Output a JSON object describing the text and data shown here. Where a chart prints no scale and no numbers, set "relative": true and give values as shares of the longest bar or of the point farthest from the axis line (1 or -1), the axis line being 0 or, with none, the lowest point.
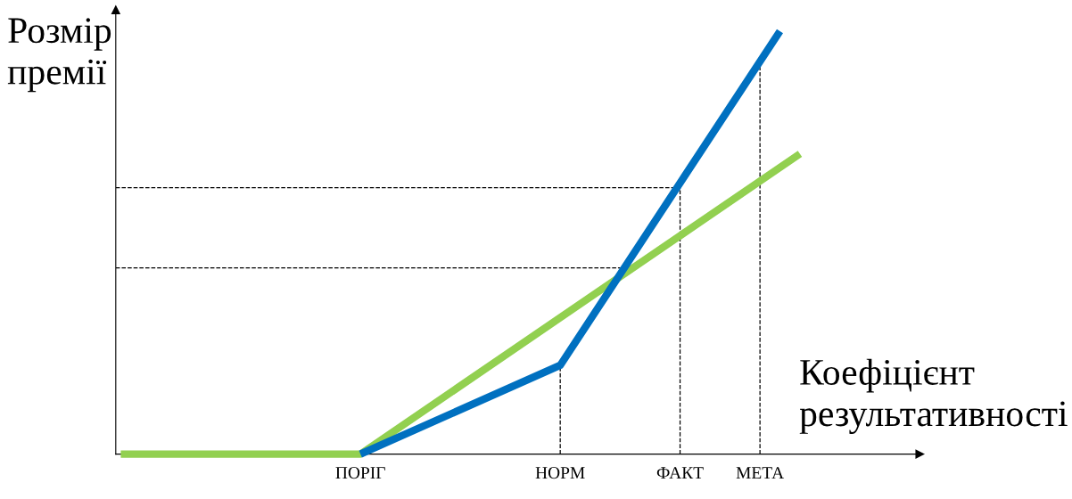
{
  "chart_data": {
    "type": "line",
    "relative": true,
    "xlabel": "Коефіцієнт\nрезультативності",
    "ylabel": "Розмір\nпремії",
    "categories": [
      null,
      null,
      null,
      null,
      null,
      null,
      null,
      null,
      null,
      null,
      null,
      null,
      "ПОРІГ",
      null,
      null,
      null,
      null,
      null,
      null,
      null,
      null,
      null,
      "НОРМ",
      null,
      null,
      null,
      null,
      null,
      "ФАКТ",
      null,
      null,
      null,
      "МЕТА",
      null,
      null,
      null,
      null,
      null,
      null,
      null,
      null
    ],
    "grid": false,
    "legend": false,
    "marker": "none",
    "line_style": "solid",
    "series": [
      {
        "values": [
          0,
          null,
          null,
          null,
          null,
          null,
          null,
          null,
          null,
          null,
          null,
          null,
          0,
          null,
          null,
          null,
          null,
          null,
          null,
          null,
          null,
          null,
          null,
          null,
          null,
          null,
          null,
          null,
          null,
          null,
          null,
          null,
          null,
          null,
          0.71,
          null,
          null,
          null,
          null,
          null,
          null
        ],
        "color": "#92d050"
      },
      {
        "values": [
          null,
          null,
          null,
          null,
          null,
          null,
          null,
          null,
          null,
          null,
          null,
          null,
          0,
          null,
          null,
          null,
          null,
          null,
          null,
          null,
          null,
          null,
          0.21,
          null,
          null,
          null,
          null,
          null,
          null,
          null,
          null,
          null,
          null,
          1,
          null,
          null,
          null,
          null,
          null,
          null,
          null
        ],
        "color": "#0070c0"
      }
    ],
    "ref_lines": [
      {
        "axis": "y",
        "value": 0.63,
        "color": "#000000",
        "line_style": "dashed"
      },
      {
        "axis": "y",
        "value": 0.44,
        "color": "#000000",
        "line_style": "dashed"
      },
      {
        "axis": "x",
        "value": "НОРМ",
        "color": "#000000",
        "line_style": "dashed"
      },
      {
        "axis": "x",
        "value": "ФАКТ",
        "color": "#000000",
        "line_style": "dashed"
      },
      {
        "axis": "x",
        "value": "МЕТА",
        "color": "#000000",
        "line_style": "dashed"
      }
    ]
  }
}
